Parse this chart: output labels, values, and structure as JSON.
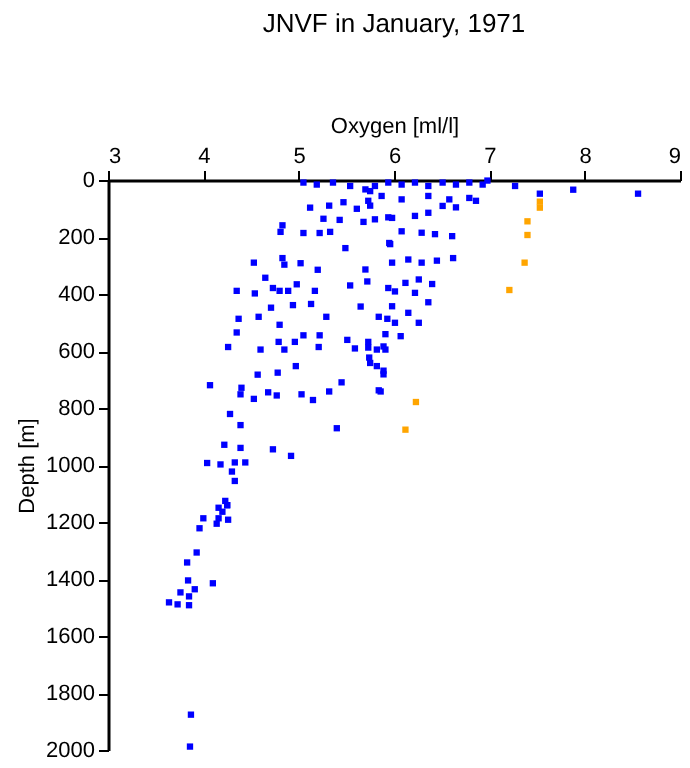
{
  "chart_data": {
    "type": "scatter",
    "title": "JNVF in January, 1971",
    "xlabel": "Oxygen [ml/l]",
    "ylabel": "Depth [m]",
    "xlim": [
      3,
      9
    ],
    "xticks": [
      3,
      4,
      5,
      6,
      7,
      8,
      9
    ],
    "ylim": [
      2000,
      0
    ],
    "yticks": [
      0,
      200,
      400,
      600,
      800,
      1000,
      1200,
      1400,
      1600,
      1800,
      2000
    ],
    "grid": false,
    "marker": "square",
    "series": [
      {
        "color": "#0000ff",
        "x": [
          7.27,
          7.53,
          7.88,
          8.56,
          5.12,
          4.81,
          4.83,
          5.05,
          5.22,
          5.33,
          5.49,
          5.95,
          4.53,
          4.83,
          4.85,
          5.02,
          5.2,
          4.65,
          4.35,
          4.54,
          4.73,
          4.8,
          4.89,
          4.98,
          5.17,
          5.54,
          5.72,
          5.94,
          4.71,
          4.94,
          5.13,
          4.37,
          4.58,
          4.8,
          5.29,
          5.65,
          5.84,
          5.93,
          4.35,
          4.79,
          4.96,
          5.05,
          5.22,
          5.51,
          5.73,
          5.89,
          4.26,
          4.6,
          4.85,
          4.97,
          5.21,
          5.59,
          5.74,
          5.89,
          4.57,
          4.78,
          5.45,
          4.07,
          4.4,
          4.39,
          4.53,
          4.68,
          4.77,
          5.03,
          5.15,
          5.32,
          5.84,
          4.28,
          4.39,
          5.4,
          4.22,
          4.39,
          4.73,
          4.92,
          4.04,
          4.18,
          4.33,
          4.44,
          4.3,
          4.33,
          4.25,
          4.16,
          4.23,
          4.25,
          4.2,
          4.0,
          4.16,
          4.26,
          3.96,
          4.14,
          3.93,
          3.83,
          3.84,
          4.1,
          3.91,
          3.76,
          3.85,
          3.64,
          3.73,
          3.85,
          3.87,
          3.86,
          5.7,
          5.8,
          5.94,
          6.08,
          6.22,
          6.36,
          6.51,
          6.65,
          6.79,
          6.93,
          6.98,
          5.73,
          5.87,
          6.08,
          6.36,
          6.58,
          6.79,
          6.86,
          5.8,
          5.98,
          6.22,
          6.36,
          6.51,
          6.65,
          6.08,
          6.29,
          6.43,
          6.61,
          5.96,
          5.98,
          6.15,
          6.29,
          6.45,
          6.62,
          6.12,
          6.26,
          6.4,
          6.01,
          6.22,
          6.36,
          5.98,
          6.15,
          6.01,
          6.26,
          5.91,
          6.07,
          5.82,
          5.91,
          5.75,
          5.82,
          5.89,
          5.86,
          5.05,
          5.19,
          5.36,
          5.54,
          5.75,
          5.32,
          5.47,
          5.61,
          5.75,
          5.43,
          5.68,
          5.26,
          5.94,
          5.7,
          5.73
        ],
        "values": [
          21,
          48,
          34,
          48,
          97,
          182,
          159,
          186,
          186,
          182,
          239,
          221,
          290,
          274,
          297,
          292,
          315,
          343,
          389,
          398,
          379,
          389,
          389,
          366,
          389,
          370,
          356,
          379,
          448,
          439,
          435,
          487,
          480,
          508,
          480,
          444,
          480,
          487,
          535,
          568,
          568,
          545,
          545,
          561,
          568,
          584,
          586,
          595,
          595,
          653,
          586,
          591,
          623,
          669,
          683,
          676,
          710,
          720,
          729,
          752,
          768,
          745,
          756,
          752,
          772,
          742,
          738,
          821,
          860,
          871,
          929,
          940,
          945,
          968,
          993,
          998,
          991,
          991,
          1023,
          1056,
          1141,
          1150,
          1126,
          1141,
          1164,
          1187,
          1187,
          1192,
          1222,
          1206,
          1307,
          1342,
          1405,
          1415,
          1436,
          1447,
          1461,
          1482,
          1489,
          1492,
          1876,
          1988,
          33,
          21,
          9,
          16,
          9,
          21,
          9,
          16,
          9,
          16,
          2,
          73,
          56,
          68,
          56,
          68,
          63,
          73,
          138,
          133,
          126,
          115,
          91,
          96,
          180,
          185,
          190,
          197,
          225,
          290,
          279,
          290,
          283,
          274,
          361,
          349,
          365,
          391,
          396,
          429,
          443,
          466,
          501,
          501,
          541,
          548,
          595,
          595,
          642,
          653,
          682,
          742,
          9,
          16,
          9,
          21,
          39,
          90,
          78,
          101,
          90,
          140,
          147,
          136,
          131,
          314,
          588
        ]
      },
      {
        "color": "#ffa500",
        "x": [
          7.53,
          7.53,
          7.4,
          7.4,
          7.37,
          7.21,
          6.23,
          6.12
        ],
        "values": [
          76,
          97,
          145,
          193,
          290,
          386,
          779,
          876
        ]
      }
    ]
  }
}
